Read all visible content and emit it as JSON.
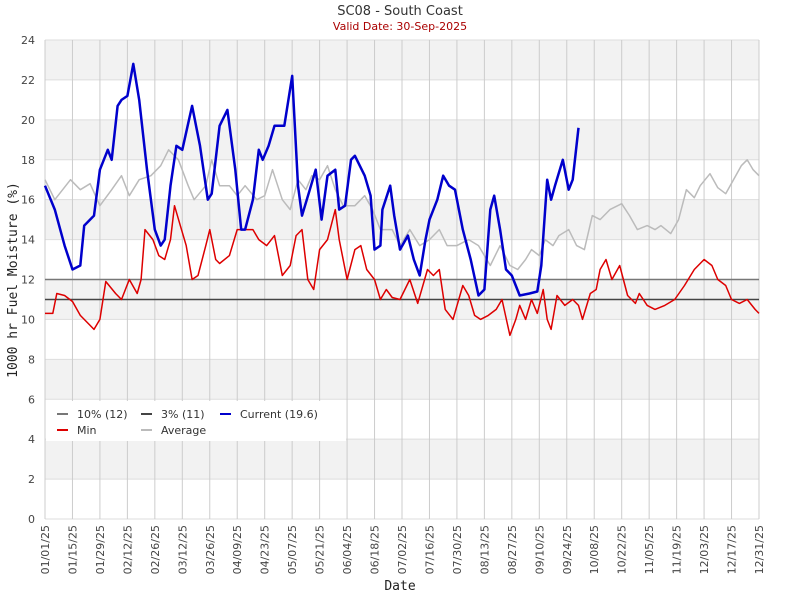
{
  "chart_data": {
    "type": "line",
    "title": "SC08 - South Coast",
    "subtitle": "Valid Date: 30-Sep-2025",
    "xlabel": "Date",
    "ylabel": "1000 hr Fuel Moisture (%)",
    "ylim": [
      0,
      24
    ],
    "xlim_days": [
      0,
      364
    ],
    "yticks": [
      "0",
      "2",
      "4",
      "6",
      "8",
      "10",
      "12",
      "14",
      "16",
      "18",
      "20",
      "22",
      "24"
    ],
    "xticks": [
      "01/01/25",
      "01/15/25",
      "01/29/25",
      "02/12/25",
      "02/26/25",
      "03/12/25",
      "03/26/25",
      "04/09/25",
      "04/23/25",
      "05/07/25",
      "05/21/25",
      "06/04/25",
      "06/18/25",
      "07/02/25",
      "07/16/25",
      "07/30/25",
      "08/13/25",
      "08/27/25",
      "09/10/25",
      "09/24/25",
      "10/08/25",
      "10/22/25",
      "11/05/25",
      "11/19/25",
      "12/03/25",
      "12/17/25",
      "12/31/25"
    ],
    "grid": true,
    "legend_placement": "bottom-left",
    "thresholds": [
      {
        "name": "10% (12)",
        "value": 12,
        "color": "#777777"
      },
      {
        "name": "3% (11)",
        "value": 11,
        "color": "#444444"
      }
    ],
    "series": [
      {
        "name": "Min",
        "color": "#dd0000",
        "points": [
          [
            0,
            10.3
          ],
          [
            4,
            10.3
          ],
          [
            6,
            11.3
          ],
          [
            10,
            11.2
          ],
          [
            14,
            10.9
          ],
          [
            18,
            10.2
          ],
          [
            23,
            9.7
          ],
          [
            25,
            9.5
          ],
          [
            28,
            10
          ],
          [
            31,
            11.9
          ],
          [
            36,
            11.3
          ],
          [
            39,
            11
          ],
          [
            43,
            12
          ],
          [
            47,
            11.3
          ],
          [
            49,
            12
          ],
          [
            51,
            14.5
          ],
          [
            55,
            14
          ],
          [
            58,
            13.2
          ],
          [
            61,
            13
          ],
          [
            64,
            14
          ],
          [
            66,
            15.7
          ],
          [
            69,
            14.7
          ],
          [
            72,
            13.7
          ],
          [
            75,
            12
          ],
          [
            78,
            12.2
          ],
          [
            82,
            13.7
          ],
          [
            84,
            14.5
          ],
          [
            87,
            13
          ],
          [
            89,
            12.8
          ],
          [
            94,
            13.2
          ],
          [
            98,
            14.5
          ],
          [
            101,
            14.5
          ],
          [
            106,
            14.5
          ],
          [
            109,
            14
          ],
          [
            113,
            13.7
          ],
          [
            117,
            14.2
          ],
          [
            121,
            12.2
          ],
          [
            125,
            12.7
          ],
          [
            128,
            14.2
          ],
          [
            131,
            14.5
          ],
          [
            134,
            12
          ],
          [
            137,
            11.5
          ],
          [
            140,
            13.5
          ],
          [
            144,
            14
          ],
          [
            148,
            15.5
          ],
          [
            150,
            14
          ],
          [
            154,
            12
          ],
          [
            158,
            13.5
          ],
          [
            161,
            13.7
          ],
          [
            164,
            12.5
          ],
          [
            168,
            12
          ],
          [
            171,
            11
          ],
          [
            174,
            11.5
          ],
          [
            177,
            11.1
          ],
          [
            181,
            11
          ],
          [
            186,
            12
          ],
          [
            190,
            10.8
          ],
          [
            195,
            12.5
          ],
          [
            198,
            12.2
          ],
          [
            201,
            12.5
          ],
          [
            204,
            10.5
          ],
          [
            208,
            10
          ],
          [
            213,
            11.7
          ],
          [
            216,
            11.2
          ],
          [
            219,
            10.2
          ],
          [
            222,
            10
          ],
          [
            226,
            10.2
          ],
          [
            230,
            10.5
          ],
          [
            233,
            11
          ],
          [
            237,
            9.2
          ],
          [
            240,
            10
          ],
          [
            242,
            10.7
          ],
          [
            245,
            10
          ],
          [
            248,
            11
          ],
          [
            251,
            10.3
          ],
          [
            254,
            11.5
          ],
          [
            256,
            10
          ],
          [
            258,
            9.5
          ],
          [
            261,
            11.2
          ],
          [
            265,
            10.7
          ],
          [
            269,
            11
          ],
          [
            272,
            10.7
          ],
          [
            274,
            10
          ],
          [
            278,
            11.3
          ],
          [
            281,
            11.5
          ],
          [
            283,
            12.5
          ],
          [
            286,
            13
          ],
          [
            289,
            12
          ],
          [
            293,
            12.7
          ],
          [
            297,
            11.2
          ],
          [
            301,
            10.8
          ],
          [
            303,
            11.3
          ],
          [
            307,
            10.7
          ],
          [
            311,
            10.5
          ],
          [
            316,
            10.7
          ],
          [
            321,
            11
          ],
          [
            326,
            11.7
          ],
          [
            331,
            12.5
          ],
          [
            336,
            13
          ],
          [
            340,
            12.7
          ],
          [
            343,
            12
          ],
          [
            347,
            11.7
          ],
          [
            350,
            11
          ],
          [
            354,
            10.8
          ],
          [
            358,
            11
          ],
          [
            362,
            10.5
          ],
          [
            364,
            10.3
          ]
        ]
      },
      {
        "name": "Average",
        "color": "#bbbbbb",
        "points": [
          [
            0,
            17
          ],
          [
            5,
            16
          ],
          [
            13,
            17
          ],
          [
            18,
            16.5
          ],
          [
            23,
            16.8
          ],
          [
            28,
            15.7
          ],
          [
            34,
            16.5
          ],
          [
            39,
            17.2
          ],
          [
            43,
            16.2
          ],
          [
            48,
            17
          ],
          [
            54,
            17.2
          ],
          [
            59,
            17.7
          ],
          [
            63,
            18.5
          ],
          [
            68,
            18
          ],
          [
            73,
            16.7
          ],
          [
            76,
            16
          ],
          [
            82,
            16.7
          ],
          [
            85,
            18
          ],
          [
            89,
            16.7
          ],
          [
            94,
            16.7
          ],
          [
            98,
            16.2
          ],
          [
            102,
            16.7
          ],
          [
            108,
            16
          ],
          [
            112,
            16.2
          ],
          [
            116,
            17.5
          ],
          [
            121,
            16
          ],
          [
            125,
            15.5
          ],
          [
            129,
            17
          ],
          [
            133,
            16.5
          ],
          [
            136,
            17.2
          ],
          [
            140,
            17
          ],
          [
            144,
            17.7
          ],
          [
            148,
            16.5
          ],
          [
            152,
            15.7
          ],
          [
            158,
            15.7
          ],
          [
            163,
            16.2
          ],
          [
            167,
            15.5
          ],
          [
            171,
            14.5
          ],
          [
            177,
            14.5
          ],
          [
            181,
            13.7
          ],
          [
            186,
            14.5
          ],
          [
            191,
            13.7
          ],
          [
            196,
            14
          ],
          [
            201,
            14.5
          ],
          [
            205,
            13.7
          ],
          [
            210,
            13.7
          ],
          [
            216,
            14
          ],
          [
            221,
            13.7
          ],
          [
            227,
            12.7
          ],
          [
            232,
            13.7
          ],
          [
            237,
            12.7
          ],
          [
            241,
            12.5
          ],
          [
            245,
            13
          ],
          [
            248,
            13.5
          ],
          [
            252,
            13.2
          ],
          [
            255,
            14
          ],
          [
            259,
            13.7
          ],
          [
            262,
            14.2
          ],
          [
            267,
            14.5
          ],
          [
            271,
            13.7
          ],
          [
            275,
            13.5
          ],
          [
            279,
            15.2
          ],
          [
            283,
            15
          ],
          [
            288,
            15.5
          ],
          [
            294,
            15.8
          ],
          [
            298,
            15.2
          ],
          [
            302,
            14.5
          ],
          [
            307,
            14.7
          ],
          [
            311,
            14.5
          ],
          [
            314,
            14.7
          ],
          [
            319,
            14.3
          ],
          [
            323,
            15
          ],
          [
            327,
            16.5
          ],
          [
            331,
            16.1
          ],
          [
            334,
            16.7
          ],
          [
            339,
            17.3
          ],
          [
            343,
            16.6
          ],
          [
            347,
            16.3
          ],
          [
            351,
            17
          ],
          [
            355,
            17.7
          ],
          [
            358,
            18
          ],
          [
            361,
            17.5
          ],
          [
            364,
            17.2
          ]
        ]
      },
      {
        "name": "Current (19.6)",
        "color": "#0000cc",
        "points": [
          [
            0,
            16.7
          ],
          [
            5,
            15.5
          ],
          [
            10,
            13.7
          ],
          [
            14,
            12.5
          ],
          [
            18,
            12.7
          ],
          [
            20,
            14.7
          ],
          [
            23,
            15
          ],
          [
            25,
            15.2
          ],
          [
            28,
            17.5
          ],
          [
            32,
            18.5
          ],
          [
            34,
            18
          ],
          [
            37,
            20.7
          ],
          [
            39,
            21
          ],
          [
            42,
            21.2
          ],
          [
            45,
            22.8
          ],
          [
            48,
            21
          ],
          [
            52,
            17.5
          ],
          [
            56,
            14.5
          ],
          [
            59,
            13.7
          ],
          [
            61,
            14
          ],
          [
            64,
            16.7
          ],
          [
            67,
            18.7
          ],
          [
            70,
            18.5
          ],
          [
            75,
            20.7
          ],
          [
            79,
            18.7
          ],
          [
            83,
            16
          ],
          [
            85,
            16.3
          ],
          [
            89,
            19.7
          ],
          [
            93,
            20.5
          ],
          [
            97,
            17.5
          ],
          [
            100,
            14.5
          ],
          [
            102,
            14.5
          ],
          [
            106,
            16
          ],
          [
            109,
            18.5
          ],
          [
            111,
            18
          ],
          [
            114,
            18.7
          ],
          [
            117,
            19.7
          ],
          [
            122,
            19.7
          ],
          [
            126,
            22.2
          ],
          [
            129,
            16.7
          ],
          [
            131,
            15.2
          ],
          [
            135,
            16.5
          ],
          [
            138,
            17.5
          ],
          [
            141,
            15
          ],
          [
            144,
            17.2
          ],
          [
            148,
            17.5
          ],
          [
            150,
            15.5
          ],
          [
            153,
            15.7
          ],
          [
            156,
            18
          ],
          [
            158,
            18.2
          ],
          [
            163,
            17.2
          ],
          [
            166,
            16.2
          ],
          [
            168,
            13.5
          ],
          [
            171,
            13.7
          ],
          [
            172,
            15.5
          ],
          [
            176,
            16.7
          ],
          [
            178,
            15.2
          ],
          [
            181,
            13.5
          ],
          [
            185,
            14.2
          ],
          [
            188,
            13
          ],
          [
            191,
            12.2
          ],
          [
            194,
            14
          ],
          [
            196,
            15
          ],
          [
            200,
            16
          ],
          [
            203,
            17.2
          ],
          [
            206,
            16.7
          ],
          [
            209,
            16.5
          ],
          [
            213,
            14.5
          ],
          [
            217,
            13
          ],
          [
            221,
            11.2
          ],
          [
            224,
            11.5
          ],
          [
            227,
            15.5
          ],
          [
            229,
            16.2
          ],
          [
            232,
            14.5
          ],
          [
            235,
            12.5
          ],
          [
            238,
            12.2
          ],
          [
            242,
            11.2
          ],
          [
            247,
            11.3
          ],
          [
            251,
            11.4
          ],
          [
            253,
            12.7
          ],
          [
            256,
            17
          ],
          [
            258,
            16
          ],
          [
            260,
            16.7
          ],
          [
            264,
            18
          ],
          [
            267,
            16.5
          ],
          [
            269,
            17
          ],
          [
            272,
            19.6
          ]
        ]
      }
    ]
  }
}
